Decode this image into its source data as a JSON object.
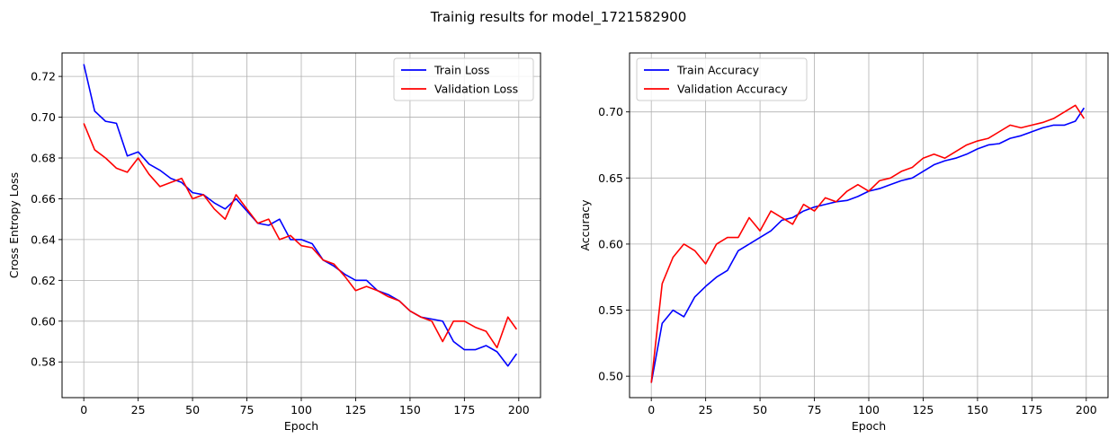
{
  "figure": {
    "title": "Trainig results for model_1721582900"
  },
  "chart_data": [
    {
      "type": "line",
      "xlabel": "Epoch",
      "ylabel": "Cross Entropy Loss",
      "xlim": [
        -10,
        210
      ],
      "ylim": [
        0.5625,
        0.7315
      ],
      "xticks": [
        0,
        25,
        50,
        75,
        100,
        125,
        150,
        175,
        200
      ],
      "yticks": [
        0.58,
        0.6,
        0.62,
        0.64,
        0.66,
        0.68,
        0.7,
        0.72
      ],
      "grid": true,
      "legend": "top-right",
      "series": [
        {
          "name": "Train Loss",
          "color": "#0000ff",
          "x": [
            0,
            5,
            10,
            15,
            20,
            25,
            30,
            35,
            40,
            45,
            50,
            55,
            60,
            65,
            70,
            75,
            80,
            85,
            90,
            95,
            100,
            105,
            110,
            115,
            120,
            125,
            130,
            135,
            140,
            145,
            150,
            155,
            160,
            165,
            170,
            175,
            180,
            185,
            190,
            195,
            199
          ],
          "y": [
            0.726,
            0.703,
            0.698,
            0.697,
            0.681,
            0.683,
            0.677,
            0.674,
            0.67,
            0.668,
            0.663,
            0.662,
            0.658,
            0.655,
            0.66,
            0.654,
            0.648,
            0.647,
            0.65,
            0.64,
            0.64,
            0.638,
            0.63,
            0.627,
            0.623,
            0.62,
            0.62,
            0.615,
            0.613,
            0.61,
            0.605,
            0.602,
            0.601,
            0.6,
            0.59,
            0.586,
            0.586,
            0.588,
            0.585,
            0.578,
            0.584
          ]
        },
        {
          "name": "Validation Loss",
          "color": "#ff0000",
          "x": [
            0,
            5,
            10,
            15,
            20,
            25,
            30,
            35,
            40,
            45,
            50,
            55,
            60,
            65,
            70,
            75,
            80,
            85,
            90,
            95,
            100,
            105,
            110,
            115,
            120,
            125,
            130,
            135,
            140,
            145,
            150,
            155,
            160,
            165,
            170,
            175,
            180,
            185,
            190,
            195,
            199
          ],
          "y": [
            0.697,
            0.684,
            0.68,
            0.675,
            0.673,
            0.68,
            0.672,
            0.666,
            0.668,
            0.67,
            0.66,
            0.662,
            0.655,
            0.65,
            0.662,
            0.655,
            0.648,
            0.65,
            0.64,
            0.642,
            0.637,
            0.636,
            0.63,
            0.628,
            0.622,
            0.615,
            0.617,
            0.615,
            0.612,
            0.61,
            0.605,
            0.602,
            0.6,
            0.59,
            0.6,
            0.6,
            0.597,
            0.595,
            0.587,
            0.602,
            0.596
          ]
        }
      ]
    },
    {
      "type": "line",
      "xlabel": "Epoch",
      "ylabel": "Accuracy",
      "xlim": [
        -10,
        210
      ],
      "ylim": [
        0.4838,
        0.7446
      ],
      "xticks": [
        0,
        25,
        50,
        75,
        100,
        125,
        150,
        175,
        200
      ],
      "yticks": [
        0.5,
        0.55,
        0.6,
        0.65,
        0.7
      ],
      "grid": true,
      "legend": "top-left",
      "series": [
        {
          "name": "Train Accuracy",
          "color": "#0000ff",
          "x": [
            0,
            5,
            10,
            15,
            20,
            25,
            30,
            35,
            40,
            45,
            50,
            55,
            60,
            65,
            70,
            75,
            80,
            85,
            90,
            95,
            100,
            105,
            110,
            115,
            120,
            125,
            130,
            135,
            140,
            145,
            150,
            155,
            160,
            165,
            170,
            175,
            180,
            185,
            190,
            195,
            199
          ],
          "y": [
            0.495,
            0.54,
            0.55,
            0.545,
            0.56,
            0.568,
            0.575,
            0.58,
            0.595,
            0.6,
            0.605,
            0.61,
            0.618,
            0.62,
            0.625,
            0.628,
            0.63,
            0.632,
            0.633,
            0.636,
            0.64,
            0.642,
            0.645,
            0.648,
            0.65,
            0.655,
            0.66,
            0.663,
            0.665,
            0.668,
            0.672,
            0.675,
            0.676,
            0.68,
            0.682,
            0.685,
            0.688,
            0.69,
            0.69,
            0.693,
            0.703
          ]
        },
        {
          "name": "Validation Accuracy",
          "color": "#ff0000",
          "x": [
            0,
            5,
            10,
            15,
            20,
            25,
            30,
            35,
            40,
            45,
            50,
            55,
            60,
            65,
            70,
            75,
            80,
            85,
            90,
            95,
            100,
            105,
            110,
            115,
            120,
            125,
            130,
            135,
            140,
            145,
            150,
            155,
            160,
            165,
            170,
            175,
            180,
            185,
            190,
            195,
            199
          ],
          "y": [
            0.495,
            0.57,
            0.59,
            0.6,
            0.595,
            0.585,
            0.6,
            0.605,
            0.605,
            0.62,
            0.61,
            0.625,
            0.62,
            0.615,
            0.63,
            0.625,
            0.635,
            0.632,
            0.64,
            0.645,
            0.64,
            0.648,
            0.65,
            0.655,
            0.658,
            0.665,
            0.668,
            0.665,
            0.67,
            0.675,
            0.678,
            0.68,
            0.685,
            0.69,
            0.688,
            0.69,
            0.692,
            0.695,
            0.7,
            0.705,
            0.695
          ]
        }
      ]
    }
  ]
}
